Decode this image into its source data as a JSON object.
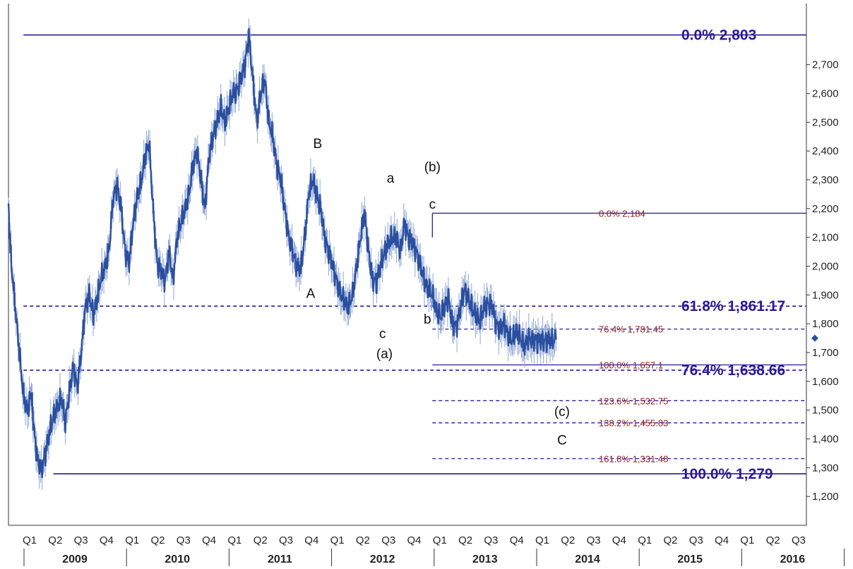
{
  "chart_data": {
    "type": "line",
    "title": "",
    "xlabel": "",
    "ylabel": "",
    "ylim": [
      1100,
      2900
    ],
    "y_ticks": [
      "1,200",
      "1,300",
      "1,400",
      "1,500",
      "1,600",
      "1,700",
      "1,800",
      "1,900",
      "2,000",
      "2,100",
      "2,200",
      "2,300",
      "2,400",
      "2,500",
      "2,600",
      "2,700"
    ],
    "y_tick_values": [
      1200,
      1300,
      1400,
      1500,
      1600,
      1700,
      1800,
      1900,
      2000,
      2100,
      2200,
      2300,
      2400,
      2500,
      2600,
      2700
    ],
    "quarters": [
      "Q1",
      "Q2",
      "Q3",
      "Q4",
      "Q1",
      "Q2",
      "Q3",
      "Q4",
      "Q1",
      "Q2",
      "Q3",
      "Q4",
      "Q1",
      "Q2",
      "Q3",
      "Q4",
      "Q1",
      "Q2",
      "Q3",
      "Q4",
      "Q1",
      "Q2",
      "Q3",
      "Q4",
      "Q1",
      "Q2",
      "Q3",
      "Q4",
      "Q1",
      "Q2",
      "Q3"
    ],
    "years": [
      "2009",
      "2010",
      "2011",
      "2012",
      "2013",
      "2014",
      "2015",
      "2016"
    ],
    "x_start": 2008.75,
    "x_end": 2016.75,
    "series": [
      {
        "x": [
          2008.75,
          2008.78,
          2008.82,
          2008.86,
          2008.9,
          2008.94,
          2008.98,
          2009.0,
          2009.04,
          2009.08,
          2009.12,
          2009.16,
          2009.2,
          2009.24,
          2009.28,
          2009.32,
          2009.36,
          2009.4,
          2009.44,
          2009.48,
          2009.52,
          2009.56,
          2009.6,
          2009.64,
          2009.68,
          2009.72,
          2009.76,
          2009.8,
          2009.84,
          2009.88,
          2009.92,
          2009.96,
          2010.0,
          2010.04,
          2010.08,
          2010.12,
          2010.16,
          2010.2,
          2010.24,
          2010.28,
          2010.32,
          2010.36,
          2010.4,
          2010.44,
          2010.48,
          2010.52,
          2010.56,
          2010.6,
          2010.64,
          2010.68,
          2010.72,
          2010.76,
          2010.8,
          2010.84,
          2010.88,
          2010.92,
          2010.96,
          2011.0,
          2011.04,
          2011.08,
          2011.12,
          2011.16,
          2011.2,
          2011.24,
          2011.28,
          2011.32,
          2011.36,
          2011.4,
          2011.44,
          2011.48,
          2011.52,
          2011.56,
          2011.6,
          2011.64,
          2011.68,
          2011.72,
          2011.76,
          2011.8,
          2011.84,
          2011.88,
          2011.92,
          2011.96,
          2012.0,
          2012.04,
          2012.08,
          2012.12,
          2012.16,
          2012.2,
          2012.24,
          2012.28,
          2012.32,
          2012.36,
          2012.4,
          2012.44,
          2012.48,
          2012.52,
          2012.56,
          2012.6,
          2012.64,
          2012.68,
          2012.72,
          2012.76,
          2012.8,
          2012.84,
          2012.88,
          2012.92,
          2012.96,
          2013.0,
          2013.04,
          2013.08,
          2013.12,
          2013.16,
          2013.2,
          2013.24,
          2013.28,
          2013.32,
          2013.36,
          2013.4,
          2013.44,
          2013.48,
          2013.52,
          2013.56,
          2013.6,
          2013.64,
          2013.68,
          2013.72,
          2013.76,
          2013.8,
          2013.84,
          2013.88,
          2013.92,
          2013.96,
          2014.0,
          2014.04,
          2014.08,
          2014.12,
          2014.16,
          2014.2,
          2014.24
        ],
        "y": [
          2200,
          2000,
          1850,
          1700,
          1550,
          1500,
          1560,
          1450,
          1330,
          1290,
          1350,
          1420,
          1480,
          1510,
          1540,
          1460,
          1560,
          1650,
          1580,
          1700,
          1860,
          1900,
          1830,
          1890,
          1960,
          2000,
          2060,
          2240,
          2280,
          2200,
          2050,
          2010,
          2150,
          2240,
          2290,
          2380,
          2430,
          2200,
          2010,
          1980,
          1950,
          2050,
          1950,
          2100,
          2150,
          2200,
          2250,
          2350,
          2400,
          2300,
          2200,
          2380,
          2450,
          2500,
          2550,
          2500,
          2550,
          2600,
          2610,
          2650,
          2700,
          2800,
          2650,
          2500,
          2600,
          2650,
          2500,
          2450,
          2350,
          2300,
          2200,
          2100,
          2050,
          2000,
          1990,
          2100,
          2250,
          2300,
          2250,
          2200,
          2100,
          2050,
          2000,
          1950,
          1900,
          1880,
          1860,
          1900,
          2000,
          2100,
          2190,
          2050,
          1950,
          1950,
          2000,
          2050,
          2080,
          2100,
          2100,
          2050,
          2150,
          2100,
          2080,
          2050,
          2000,
          1950,
          1920,
          1900,
          1850,
          1820,
          1860,
          1890,
          1800,
          1790,
          1850,
          1920,
          1890,
          1850,
          1830,
          1810,
          1860,
          1870,
          1860,
          1800,
          1780,
          1800,
          1760,
          1740,
          1780,
          1750,
          1720,
          1750,
          1740,
          1745,
          1740,
          1740,
          1745,
          1740,
          1745
        ]
      }
    ],
    "fib_lines": [
      {
        "id": "f00",
        "pct": "0.0%",
        "value_label": "2,803",
        "y": 2803,
        "x_from": 2008.9,
        "style": "solid",
        "size": "big"
      },
      {
        "id": "f618",
        "pct": "61.8%",
        "value_label": "1,861.17",
        "y": 1861.17,
        "x_from": 2008.9,
        "style": "dashed",
        "size": "big"
      },
      {
        "id": "f764",
        "pct": "76.4%",
        "value_label": "1,638.66",
        "y": 1638.66,
        "x_from": 2008.9,
        "style": "dashed",
        "size": "big"
      },
      {
        "id": "f100",
        "pct": "100.0%",
        "value_label": "1,279",
        "y": 1279,
        "x_from": 2009.2,
        "style": "solid",
        "size": "big"
      },
      {
        "id": "s00",
        "pct": "0.0%",
        "value_label": "2,184",
        "y": 2184,
        "x_from": 2013.0,
        "style": "solid",
        "size": "small"
      },
      {
        "id": "s764",
        "pct": "76.4%",
        "value_label": "1,781.45",
        "y": 1781.45,
        "x_from": 2013.0,
        "style": "dashed",
        "size": "small"
      },
      {
        "id": "s100",
        "pct": "100.0%",
        "value_label": "1,657.1",
        "y": 1657.1,
        "x_from": 2013.0,
        "style": "solid",
        "size": "small"
      },
      {
        "id": "s1236",
        "pct": "123.6%",
        "value_label": "1,532.75",
        "y": 1532.75,
        "x_from": 2013.0,
        "style": "dashed",
        "size": "small"
      },
      {
        "id": "s1382",
        "pct": "138.2%",
        "value_label": "1,455.83",
        "y": 1455.83,
        "x_from": 2013.0,
        "style": "dashed",
        "size": "small"
      },
      {
        "id": "s1618",
        "pct": "161.8%",
        "value_label": "1,331.48",
        "y": 1331.48,
        "x_from": 2013.0,
        "style": "dashed",
        "size": "small"
      }
    ],
    "annotations": [
      {
        "text": "B",
        "x": 2011.85,
        "y": 2410
      },
      {
        "text": "A",
        "x": 2011.78,
        "y": 1890
      },
      {
        "text": "a",
        "x": 2012.58,
        "y": 2290
      },
      {
        "text": "(b)",
        "x": 2013.0,
        "y": 2330
      },
      {
        "text": "c",
        "x": 2013.0,
        "y": 2200
      },
      {
        "text": "b",
        "x": 2012.95,
        "y": 1800
      },
      {
        "text": "c",
        "x": 2012.5,
        "y": 1750
      },
      {
        "text": "(a)",
        "x": 2012.52,
        "y": 1680
      },
      {
        "text": "(c)",
        "x": 2014.3,
        "y": 1480
      },
      {
        "text": "C",
        "x": 2014.3,
        "y": 1380
      }
    ],
    "current_marker": {
      "x": 2016.75,
      "y": 1750
    },
    "colors": {
      "price": "#2b4f9e",
      "fib_big": "#2a1a9a",
      "fib_small_text": "#8a1a1a",
      "fib_line": "#2a1a9a"
    }
  }
}
